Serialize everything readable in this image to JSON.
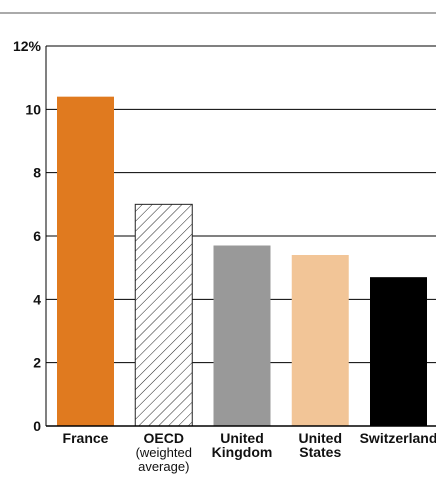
{
  "chart_data": {
    "type": "bar",
    "categories": [
      "France",
      "OECD (weighted average)",
      "United Kingdom",
      "United States",
      "Switzerland"
    ],
    "category_lines": [
      [
        "France"
      ],
      [
        "OECD",
        "(weighted",
        "average)"
      ],
      [
        "United",
        "Kingdom"
      ],
      [
        "United",
        "States"
      ],
      [
        "Switzerland"
      ]
    ],
    "values": [
      10.4,
      7.0,
      5.7,
      5.4,
      4.7
    ],
    "ylim": [
      0,
      12
    ],
    "yticks": [
      0,
      2,
      4,
      6,
      8,
      10,
      12
    ],
    "ytick_labels": [
      "0",
      "2",
      "4",
      "6",
      "8",
      "10",
      "12%"
    ],
    "grid": true,
    "title": "",
    "xlabel": "",
    "ylabel": "",
    "colors": [
      "#E07A1F",
      "hatched",
      "#999999",
      "#F2C597",
      "#000000"
    ]
  }
}
